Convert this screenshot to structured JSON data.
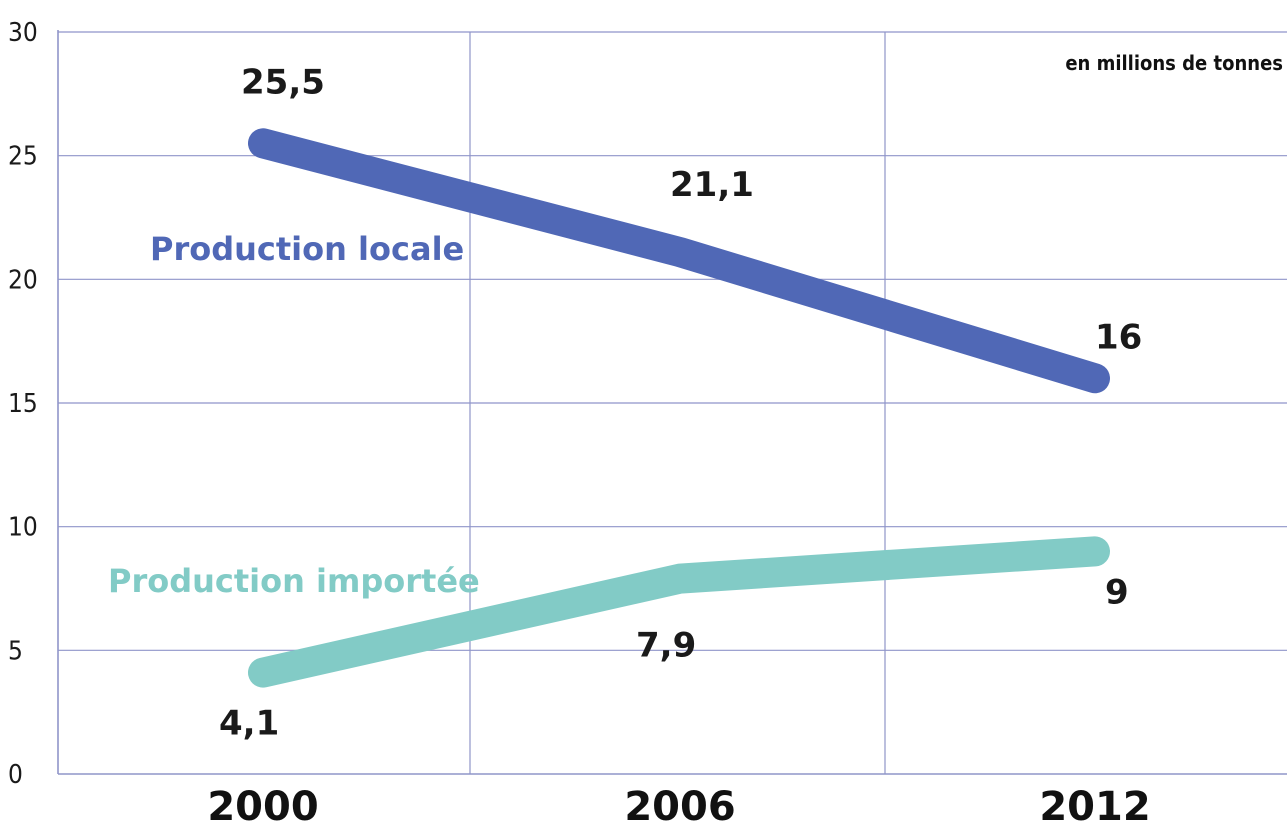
{
  "chart_data": {
    "type": "line",
    "unit_label": "en millions de tonnes",
    "x": [
      "2000",
      "2006",
      "2012"
    ],
    "ylim": [
      0,
      30
    ],
    "yticks": [
      "0",
      "5",
      "10",
      "15",
      "20",
      "25",
      "30"
    ],
    "grid": true,
    "series": [
      {
        "name": "Production locale",
        "values": [
          25.5,
          21.1,
          16
        ],
        "data_labels": [
          "25,5",
          "21,1",
          "16"
        ],
        "color": "#5068b6"
      },
      {
        "name": "Production importée",
        "values": [
          4.1,
          7.9,
          9
        ],
        "data_labels": [
          "4,1",
          "7,9",
          "9"
        ],
        "color": "#82cbc6"
      }
    ]
  }
}
